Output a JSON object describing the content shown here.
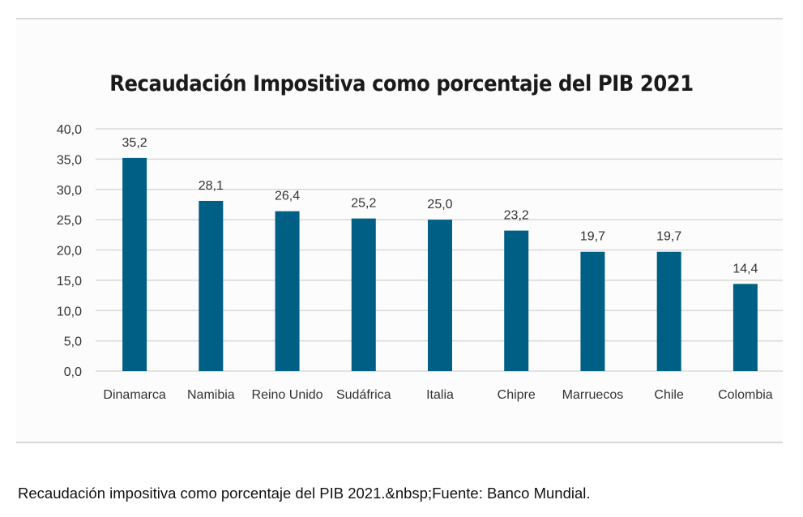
{
  "chart_data": {
    "type": "bar",
    "title": "Recaudación Impositiva como porcentaje del PIB  2021",
    "categories": [
      "Dinamarca",
      "Namibia",
      "Reino Unido",
      "Sudáfrica",
      "Italia",
      "Chipre",
      "Marruecos",
      "Chile",
      "Colombia"
    ],
    "values": [
      35.2,
      28.1,
      26.4,
      25.2,
      25.0,
      23.2,
      19.7,
      19.7,
      14.4
    ],
    "value_labels": [
      "35,2",
      "28,1",
      "26,4",
      "25,2",
      "25,0",
      "23,2",
      "19,7",
      "19,7",
      "14,4"
    ],
    "y_ticks": [
      "0,0",
      "5,0",
      "10,0",
      "15,0",
      "20,0",
      "25,0",
      "30,0",
      "35,0",
      "40,0"
    ],
    "ylim": [
      0,
      40
    ],
    "xlabel": "",
    "ylabel": "",
    "grid": true,
    "bar_color": "#005f85",
    "grid_color": "#d9d9d9"
  },
  "caption": "Recaudación impositiva como porcentaje del PIB 2021.&nbsp;Fuente: Banco Mundial."
}
